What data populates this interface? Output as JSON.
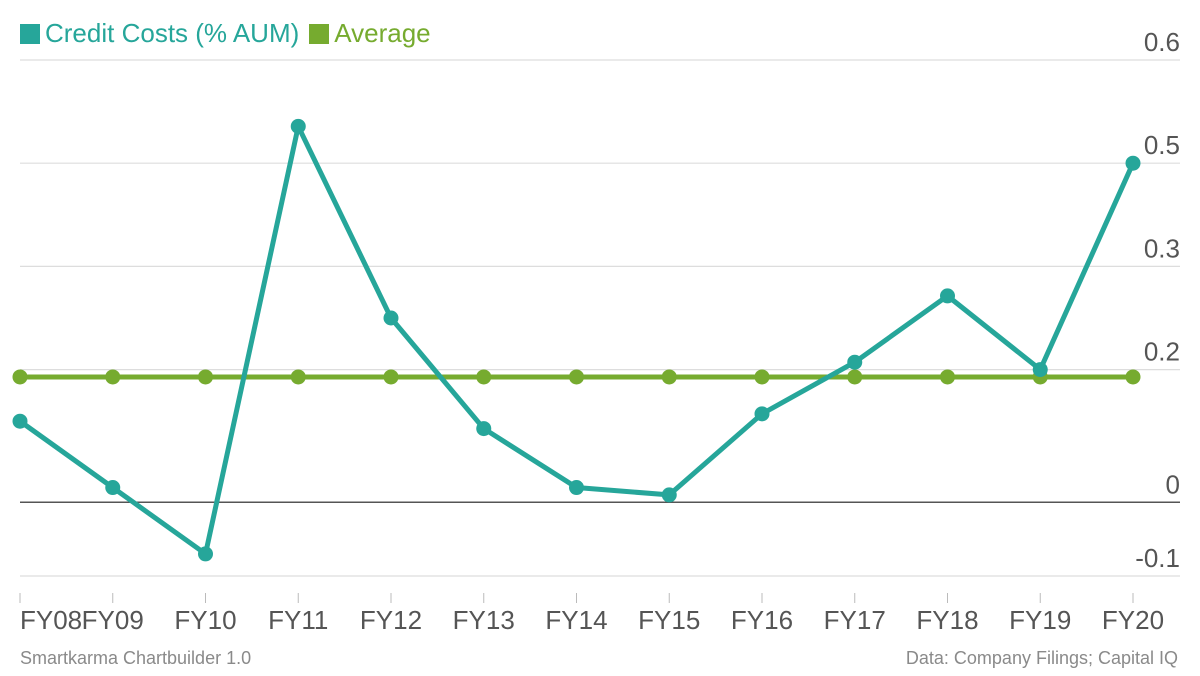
{
  "chart_data": {
    "type": "line",
    "categories": [
      "FY08",
      "FY09",
      "FY10",
      "FY11",
      "FY12",
      "FY13",
      "FY14",
      "FY15",
      "FY16",
      "FY17",
      "FY18",
      "FY19",
      "FY20"
    ],
    "series": [
      {
        "name": "Credit Costs (% AUM)",
        "color": "#26a69a",
        "values": [
          0.11,
          0.02,
          -0.07,
          0.51,
          0.25,
          0.1,
          0.02,
          0.01,
          0.12,
          0.19,
          0.28,
          0.18,
          0.46
        ]
      },
      {
        "name": "Average",
        "color": "#76ab2f",
        "values": [
          0.17,
          0.17,
          0.17,
          0.17,
          0.17,
          0.17,
          0.17,
          0.17,
          0.17,
          0.17,
          0.17,
          0.17,
          0.17
        ]
      }
    ],
    "y_ticks": [
      {
        "value": 0.6,
        "label": "0.6"
      },
      {
        "value": 0.46,
        "label": "0.5"
      },
      {
        "value": 0.32,
        "label": "0.3"
      },
      {
        "value": 0.18,
        "label": "0.2"
      },
      {
        "value": 0,
        "label": "0"
      },
      {
        "value": -0.1,
        "label": "-0.1"
      }
    ],
    "ylim": [
      -0.1,
      0.6
    ],
    "y_axis_position": "right",
    "grid": true,
    "legend_position": "top-left"
  },
  "footer": {
    "credit": "Smartkarma Chartbuilder 1.0",
    "source": "Data: Company Filings; Capital IQ"
  }
}
